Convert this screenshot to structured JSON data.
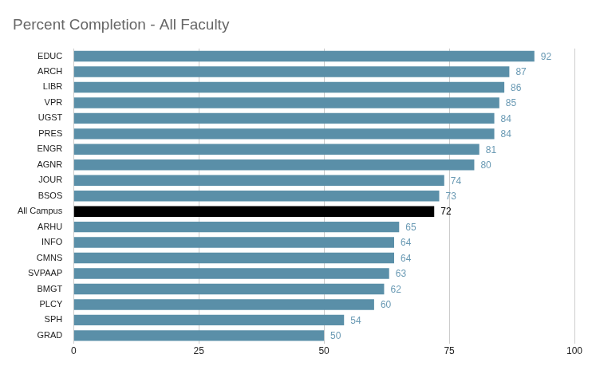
{
  "chart_data": {
    "type": "bar",
    "title": "Percent Completion - All Faculty",
    "orientation": "horizontal",
    "categories": [
      "EDUC",
      "ARCH",
      "LIBR",
      "VPR",
      "UGST",
      "PRES",
      "ENGR",
      "AGNR",
      "JOUR",
      "BSOS",
      "All Campus",
      "ARHU",
      "INFO",
      "CMNS",
      "SVPAAP",
      "BMGT",
      "PLCY",
      "SPH",
      "GRAD"
    ],
    "values": [
      92,
      87,
      86,
      85,
      84,
      84,
      81,
      80,
      74,
      73,
      72,
      65,
      64,
      64,
      63,
      62,
      60,
      54,
      50
    ],
    "colors": [
      "#5a8fa8",
      "#5a8fa8",
      "#5a8fa8",
      "#5a8fa8",
      "#5a8fa8",
      "#5a8fa8",
      "#5a8fa8",
      "#5a8fa8",
      "#5a8fa8",
      "#5a8fa8",
      "#000000",
      "#5a8fa8",
      "#5a8fa8",
      "#5a8fa8",
      "#5a8fa8",
      "#5a8fa8",
      "#5a8fa8",
      "#5a8fa8",
      "#5a8fa8"
    ],
    "xlim": [
      0,
      100
    ],
    "xticks": [
      0,
      25,
      50,
      75,
      100
    ],
    "grid": true,
    "data_labels": true
  }
}
